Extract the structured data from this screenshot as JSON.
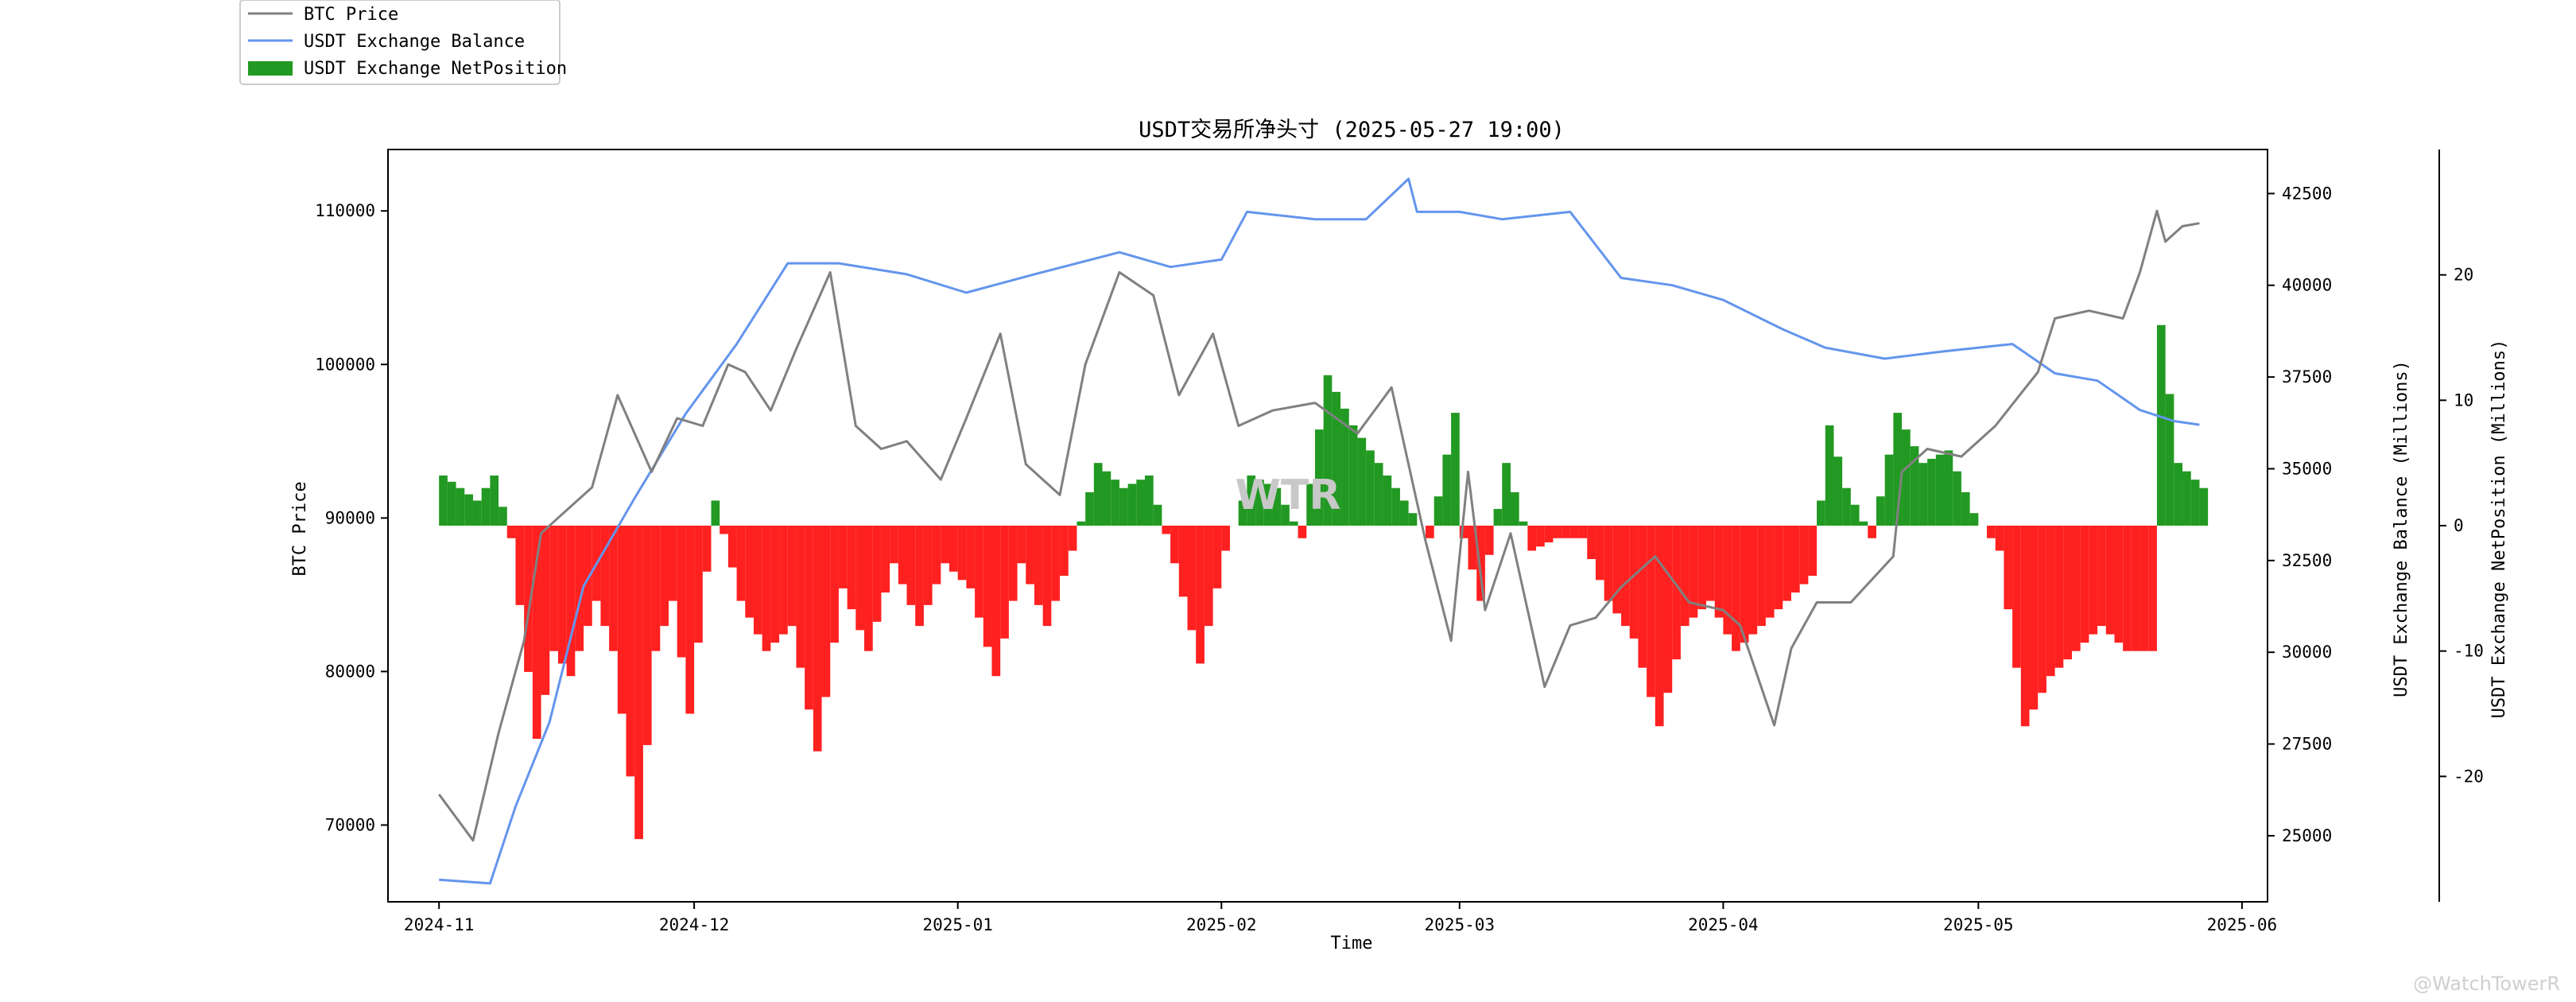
{
  "chart_data": {
    "type": "line",
    "title": "USDT交易所净头寸 (2025-05-27 19:00)",
    "xlabel": "Time",
    "x_ticks": [
      "2024-11",
      "2024-12",
      "2025-01",
      "2025-02",
      "2025-03",
      "2025-04",
      "2025-05",
      "2025-06"
    ],
    "x_range": [
      "2024-10-26",
      "2025-06-04"
    ],
    "data_range": [
      "2024-11-01",
      "2025-05-27"
    ],
    "y_left": {
      "label": "BTC Price",
      "range": [
        65000,
        114000
      ],
      "ticks": [
        70000,
        80000,
        90000,
        100000,
        110000
      ]
    },
    "y_right": {
      "label": "USDT Exchange Balance (Millions)",
      "range": [
        23200,
        43700
      ],
      "ticks": [
        25000,
        27500,
        30000,
        32500,
        35000,
        37500,
        40000,
        42500
      ]
    },
    "y_right2": {
      "label": "USDT Exchange NetPosition (Millions)",
      "range": [
        -30,
        30
      ],
      "ticks": [
        -20,
        -10,
        0,
        10,
        20
      ]
    },
    "legend": {
      "placement": "top-left, outside plot"
    },
    "series": [
      {
        "name": "BTC Price",
        "kind": "line",
        "axis": "left",
        "color": "#808080",
        "x": [
          "2024-11-01",
          "2024-11-05",
          "2024-11-08",
          "2024-11-11",
          "2024-11-13",
          "2024-11-15",
          "2024-11-19",
          "2024-11-22",
          "2024-11-26",
          "2024-11-29",
          "2024-12-02",
          "2024-12-05",
          "2024-12-07",
          "2024-12-10",
          "2024-12-13",
          "2024-12-17",
          "2024-12-20",
          "2024-12-23",
          "2024-12-26",
          "2024-12-30",
          "2025-01-02",
          "2025-01-06",
          "2025-01-09",
          "2025-01-13",
          "2025-01-16",
          "2025-01-20",
          "2025-01-24",
          "2025-01-27",
          "2025-01-31",
          "2025-02-03",
          "2025-02-07",
          "2025-02-12",
          "2025-02-17",
          "2025-02-21",
          "2025-02-25",
          "2025-02-28",
          "2025-03-02",
          "2025-03-04",
          "2025-03-07",
          "2025-03-11",
          "2025-03-14",
          "2025-03-17",
          "2025-03-20",
          "2025-03-24",
          "2025-03-28",
          "2025-04-01",
          "2025-04-03",
          "2025-04-07",
          "2025-04-09",
          "2025-04-12",
          "2025-04-16",
          "2025-04-21",
          "2025-04-22",
          "2025-04-25",
          "2025-04-29",
          "2025-05-03",
          "2025-05-08",
          "2025-05-10",
          "2025-05-14",
          "2025-05-18",
          "2025-05-20",
          "2025-05-22",
          "2025-05-23",
          "2025-05-25",
          "2025-05-27"
        ],
        "values": [
          72000,
          69000,
          76000,
          82000,
          89000,
          90000,
          92000,
          98000,
          93000,
          96500,
          96000,
          100000,
          99500,
          97000,
          101000,
          106000,
          96000,
          94500,
          95000,
          92500,
          96500,
          102000,
          93500,
          91500,
          100000,
          106000,
          104500,
          98000,
          102000,
          96000,
          97000,
          97500,
          95500,
          98500,
          88500,
          82000,
          93000,
          84000,
          89000,
          79000,
          83000,
          83500,
          85500,
          87500,
          84500,
          84000,
          83000,
          76500,
          81500,
          84500,
          84500,
          87500,
          93000,
          94500,
          94000,
          96000,
          99500,
          103000,
          103500,
          103000,
          106000,
          110000,
          108000,
          109000,
          109200
        ]
      },
      {
        "name": "USDT Exchange Balance",
        "kind": "line",
        "axis": "right",
        "color": "#6495ed",
        "x": [
          "2024-11-01",
          "2024-11-07",
          "2024-11-10",
          "2024-11-14",
          "2024-11-18",
          "2024-11-24",
          "2024-11-30",
          "2024-12-06",
          "2024-12-12",
          "2024-12-18",
          "2024-12-26",
          "2025-01-02",
          "2025-01-10",
          "2025-01-20",
          "2025-01-26",
          "2025-02-01",
          "2025-02-04",
          "2025-02-12",
          "2025-02-18",
          "2025-02-23",
          "2025-02-24",
          "2025-03-01",
          "2025-03-06",
          "2025-03-14",
          "2025-03-20",
          "2025-03-26",
          "2025-04-01",
          "2025-04-08",
          "2025-04-13",
          "2025-04-20",
          "2025-04-27",
          "2025-05-05",
          "2025-05-10",
          "2025-05-15",
          "2025-05-20",
          "2025-05-24",
          "2025-05-27"
        ],
        "values": [
          23800,
          23700,
          25800,
          28100,
          31800,
          34200,
          36500,
          38400,
          40600,
          40600,
          40300,
          39800,
          40300,
          40900,
          40500,
          40700,
          42000,
          41800,
          41800,
          42900,
          42000,
          42000,
          41800,
          42000,
          40200,
          40000,
          39600,
          38800,
          38300,
          38000,
          38200,
          38400,
          37600,
          37400,
          36600,
          36300,
          36200
        ]
      },
      {
        "name": "USDT Exchange NetPosition",
        "kind": "bar",
        "axis": "right2",
        "positive_color": "#229922",
        "negative_color": "#ff2020",
        "x": [
          "2024-11-01",
          "2024-11-03",
          "2024-11-05",
          "2024-11-07",
          "2024-11-09",
          "2024-11-12",
          "2024-11-14",
          "2024-11-16",
          "2024-11-19",
          "2024-11-21",
          "2024-11-24",
          "2024-11-26",
          "2024-11-28",
          "2024-11-30",
          "2024-12-03",
          "2024-12-06",
          "2024-12-09",
          "2024-12-12",
          "2024-12-15",
          "2024-12-18",
          "2024-12-21",
          "2024-12-24",
          "2024-12-27",
          "2024-12-30",
          "2025-01-02",
          "2025-01-05",
          "2025-01-08",
          "2025-01-11",
          "2025-01-14",
          "2025-01-17",
          "2025-01-20",
          "2025-01-23",
          "2025-01-26",
          "2025-01-29",
          "2025-02-01",
          "2025-02-04",
          "2025-02-07",
          "2025-02-10",
          "2025-02-13",
          "2025-02-16",
          "2025-02-19",
          "2025-02-22",
          "2025-02-25",
          "2025-02-28",
          "2025-03-01",
          "2025-03-03",
          "2025-03-06",
          "2025-03-09",
          "2025-03-12",
          "2025-03-15",
          "2025-03-18",
          "2025-03-21",
          "2025-03-24",
          "2025-03-27",
          "2025-03-30",
          "2025-04-02",
          "2025-04-05",
          "2025-04-08",
          "2025-04-11",
          "2025-04-13",
          "2025-04-15",
          "2025-04-18",
          "2025-04-21",
          "2025-04-24",
          "2025-04-27",
          "2025-04-30",
          "2025-05-03",
          "2025-05-06",
          "2025-05-09",
          "2025-05-12",
          "2025-05-15",
          "2025-05-18",
          "2025-05-21",
          "2025-05-22",
          "2025-05-24",
          "2025-05-27"
        ],
        "values": [
          4,
          3,
          2,
          4,
          -1,
          -17,
          -10,
          -12,
          -6,
          -10,
          -25,
          -10,
          -6,
          -15,
          2,
          -6,
          -10,
          -8,
          -18,
          -5,
          -10,
          -3,
          -8,
          -3,
          -5,
          -12,
          -3,
          -8,
          -2,
          5,
          3,
          4,
          -3,
          -11,
          -2,
          4,
          3,
          -1,
          12,
          8,
          5,
          2,
          -1,
          9,
          -1,
          -6,
          5,
          -2,
          -1,
          -1,
          -6,
          -9,
          -16,
          -8,
          -6,
          -10,
          -8,
          -6,
          -4,
          8,
          3,
          -1,
          9,
          5,
          6,
          1,
          -2,
          -16,
          -12,
          -10,
          -8,
          -10,
          -10,
          16,
          5,
          3
        ]
      }
    ]
  },
  "watermark": "WTR",
  "credit": "@WatchTowerR"
}
